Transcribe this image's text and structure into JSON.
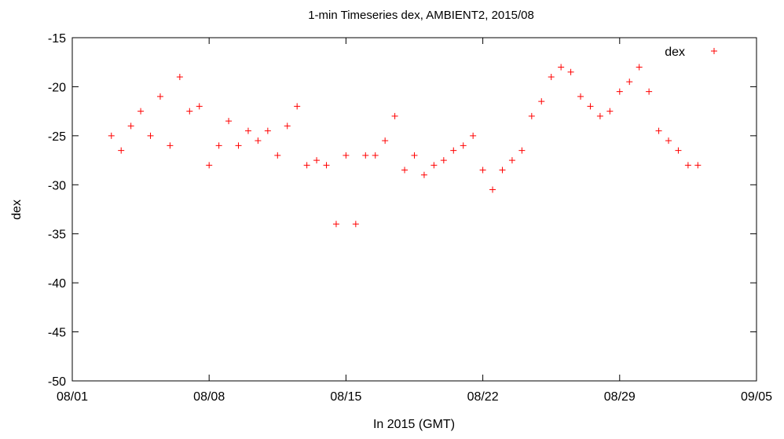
{
  "chart_data": {
    "type": "scatter",
    "title": "1-min Timeseries dex, AMBIENT2, 2015/08",
    "xlabel": "In 2015 (GMT)",
    "ylabel": "dex",
    "x_unit": "date (2015)",
    "xlim": [
      "2015-08-01",
      "2015-09-05"
    ],
    "ylim": [
      -50,
      -15
    ],
    "x_tick_labels": [
      "08/01",
      "08/08",
      "08/15",
      "08/22",
      "08/29",
      "09/05"
    ],
    "y_tick_labels": [
      "-15",
      "-20",
      "-25",
      "-30",
      "-35",
      "-40",
      "-45",
      "-50"
    ],
    "grid": false,
    "legend_position": "top-right",
    "series": [
      {
        "name": "dex",
        "color": "#ff0000",
        "marker": "plus",
        "x": [
          "2015-08-03 00:00",
          "2015-08-03 12:00",
          "2015-08-04 00:00",
          "2015-08-04 12:00",
          "2015-08-05 00:00",
          "2015-08-05 12:00",
          "2015-08-06 00:00",
          "2015-08-06 12:00",
          "2015-08-07 00:00",
          "2015-08-07 12:00",
          "2015-08-08 00:00",
          "2015-08-08 12:00",
          "2015-08-09 00:00",
          "2015-08-09 12:00",
          "2015-08-10 00:00",
          "2015-08-10 12:00",
          "2015-08-11 00:00",
          "2015-08-11 12:00",
          "2015-08-12 00:00",
          "2015-08-12 12:00",
          "2015-08-13 00:00",
          "2015-08-13 12:00",
          "2015-08-14 00:00",
          "2015-08-14 12:00",
          "2015-08-15 00:00",
          "2015-08-15 12:00",
          "2015-08-16 00:00",
          "2015-08-16 12:00",
          "2015-08-17 00:00",
          "2015-08-17 12:00",
          "2015-08-18 00:00",
          "2015-08-18 12:00",
          "2015-08-19 00:00",
          "2015-08-19 12:00",
          "2015-08-20 00:00",
          "2015-08-20 12:00",
          "2015-08-21 00:00",
          "2015-08-21 12:00",
          "2015-08-22 00:00",
          "2015-08-22 12:00",
          "2015-08-23 00:00",
          "2015-08-23 12:00",
          "2015-08-24 00:00",
          "2015-08-24 12:00",
          "2015-08-25 00:00",
          "2015-08-25 12:00",
          "2015-08-26 00:00",
          "2015-08-26 12:00",
          "2015-08-27 00:00",
          "2015-08-27 12:00",
          "2015-08-28 00:00",
          "2015-08-28 12:00",
          "2015-08-29 00:00",
          "2015-08-29 12:00",
          "2015-08-30 00:00",
          "2015-08-30 12:00",
          "2015-08-31 00:00",
          "2015-08-31 12:00",
          "2015-09-01 00:00",
          "2015-09-01 12:00",
          "2015-09-02 00:00"
        ],
        "y": [
          -25,
          -26.5,
          -24,
          -22.5,
          -25,
          -21,
          -26,
          -19,
          -22.5,
          -22,
          -28,
          -26,
          -23.5,
          -26,
          -24.5,
          -25.5,
          -24.5,
          -27,
          -24,
          -22,
          -28,
          -27.5,
          -28,
          -34,
          -27,
          -34,
          -27,
          -27,
          -25.5,
          -23,
          -28.5,
          -27,
          -29,
          -28,
          -27.5,
          -26.5,
          -26,
          -25,
          -28.5,
          -30.5,
          -28.5,
          -27.5,
          -26.5,
          -23,
          -21.5,
          -19,
          -18,
          -18.5,
          -21,
          -22,
          -23,
          -22.5,
          -20.5,
          -19.5,
          -18,
          -20.5,
          -24.5,
          -25.5,
          -26.5,
          -28,
          -28
        ]
      }
    ]
  }
}
